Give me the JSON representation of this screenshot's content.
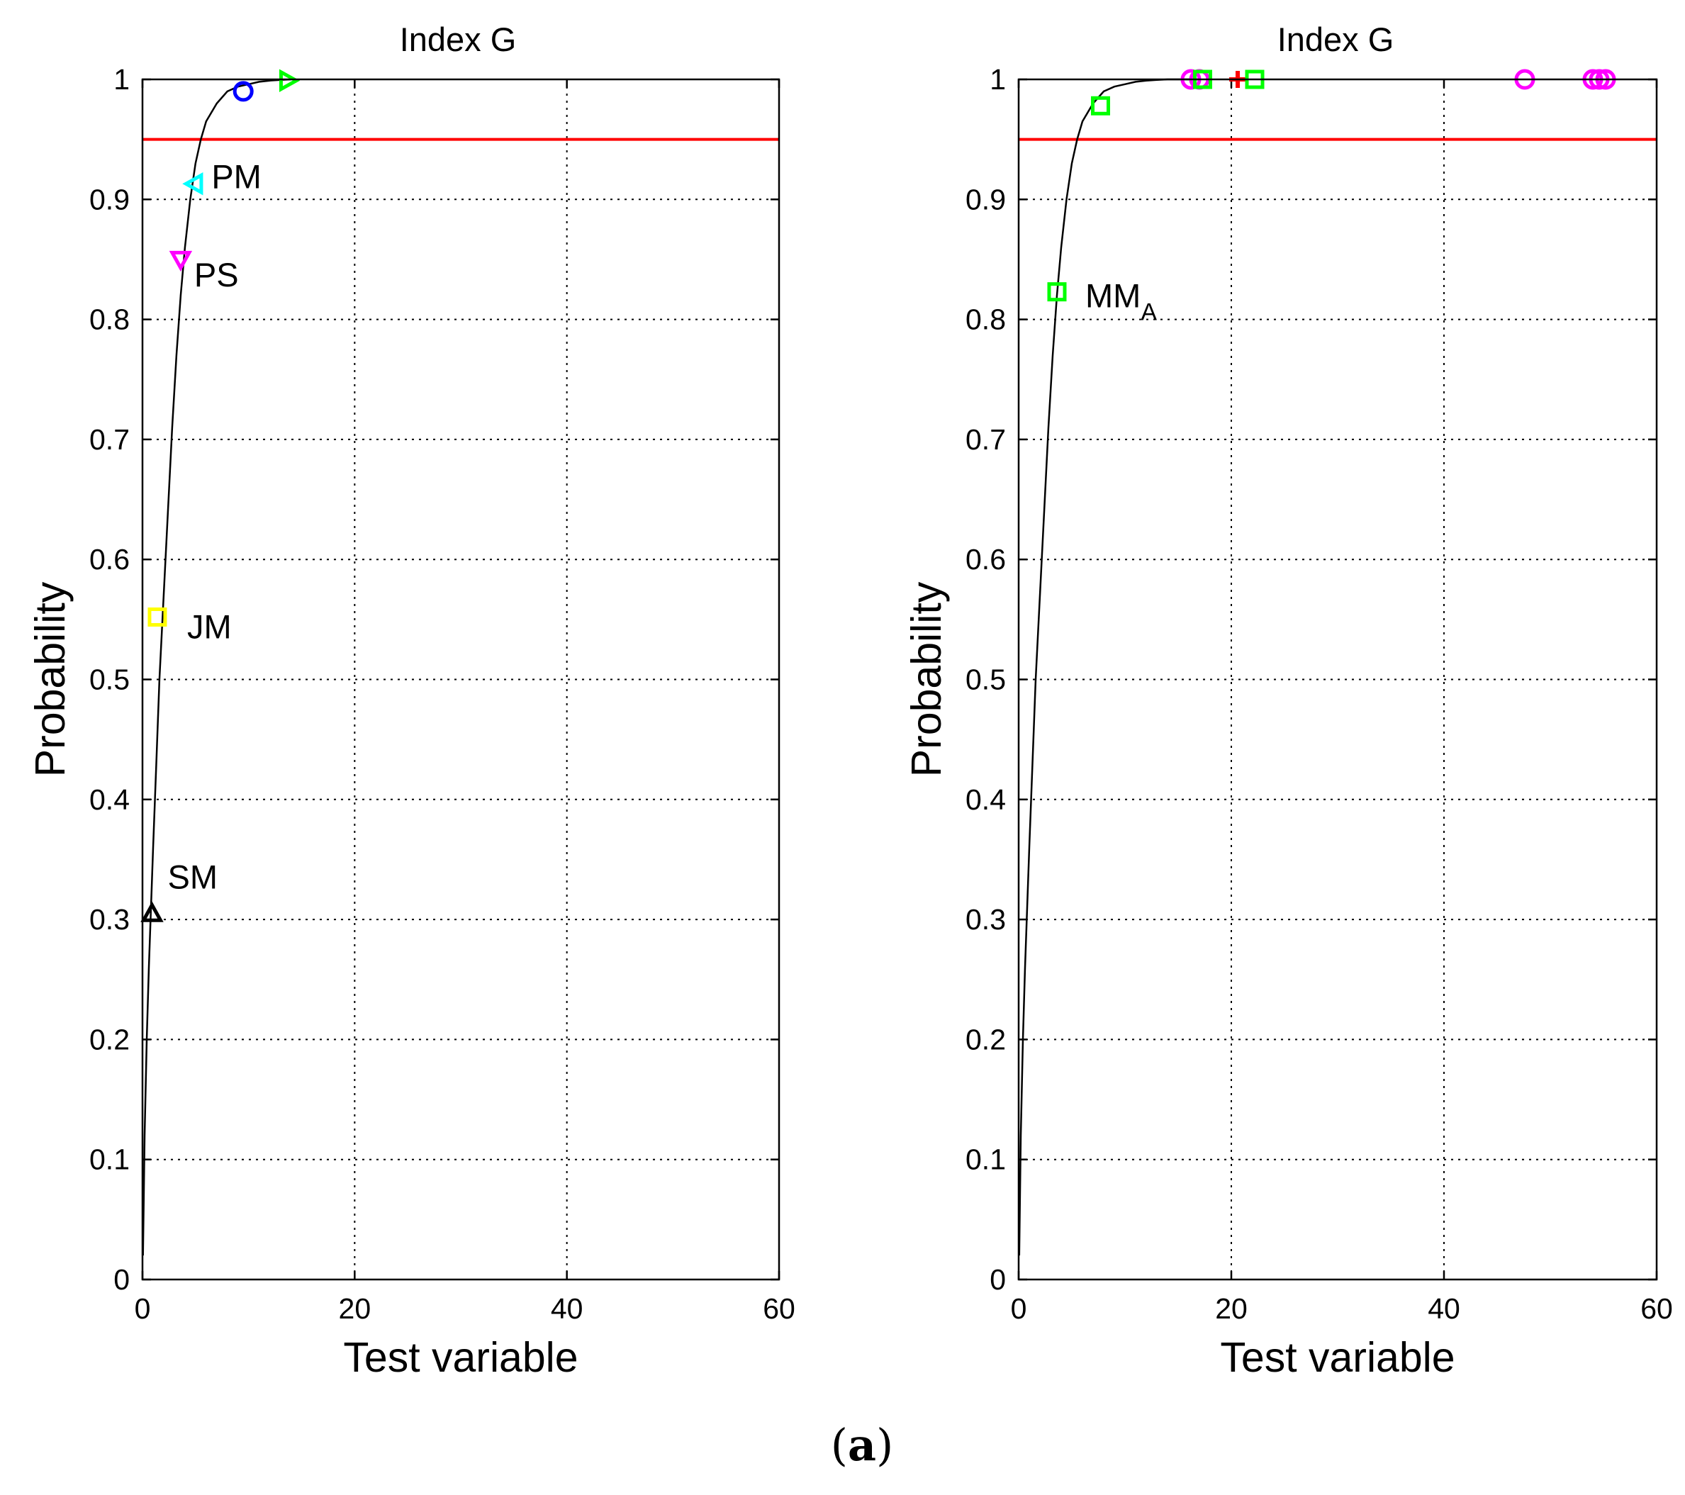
{
  "figure": {
    "caption_open": "(",
    "caption_letter": "a",
    "caption_close": ")"
  },
  "chart_data": [
    {
      "type": "line",
      "title": "Index G",
      "xlabel": "Test variable",
      "ylabel": "Probability",
      "xlim": [
        0,
        60
      ],
      "ylim": [
        0,
        1
      ],
      "xticks": [
        "0",
        "20",
        "40",
        "60"
      ],
      "yticks": [
        "0",
        "0.1",
        "0.2",
        "0.3",
        "0.4",
        "0.5",
        "0.6",
        "0.7",
        "0.8",
        "0.9",
        "1"
      ],
      "grid": true,
      "threshold": {
        "value": 0.95,
        "color": "#ff0000"
      },
      "curve": {
        "color": "#000000",
        "x": [
          0.05,
          0.2,
          0.4,
          0.6,
          0.8,
          1.0,
          1.3,
          1.6,
          2.0,
          2.4,
          2.8,
          3.2,
          3.6,
          4.0,
          4.5,
          5.0,
          5.5,
          6.0,
          7.0,
          8.0,
          9.0,
          10.0,
          11.0,
          12.0,
          13.0,
          14.0
        ],
        "y": [
          0.02,
          0.12,
          0.2,
          0.26,
          0.31,
          0.36,
          0.43,
          0.5,
          0.57,
          0.64,
          0.71,
          0.77,
          0.82,
          0.86,
          0.9,
          0.93,
          0.95,
          0.965,
          0.98,
          0.99,
          0.994,
          0.996,
          0.998,
          0.999,
          0.9995,
          1.0
        ]
      },
      "markers": [
        {
          "label": "SM",
          "x": 0.9,
          "y": 0.305,
          "shape": "triangle-up",
          "color": "#000000"
        },
        {
          "label": "JM",
          "x": 1.4,
          "y": 0.552,
          "shape": "square",
          "color": "#ffff00"
        },
        {
          "label": "PS",
          "x": 3.6,
          "y": 0.85,
          "shape": "triangle-down",
          "color": "#ff00ff"
        },
        {
          "label": "PM",
          "x": 4.9,
          "y": 0.913,
          "shape": "triangle-left",
          "color": "#00ffff"
        },
        {
          "label": "",
          "x": 9.5,
          "y": 0.99,
          "shape": "circle",
          "color": "#0000ff"
        },
        {
          "label": "",
          "x": 13.7,
          "y": 0.999,
          "shape": "triangle-right",
          "color": "#00ff00"
        }
      ]
    },
    {
      "type": "line",
      "title": "Index G",
      "xlabel": "Test variable",
      "ylabel": "Probability",
      "xlim": [
        0,
        60
      ],
      "ylim": [
        0,
        1
      ],
      "xticks": [
        "0",
        "20",
        "40",
        "60"
      ],
      "yticks": [
        "0",
        "0.1",
        "0.2",
        "0.3",
        "0.4",
        "0.5",
        "0.6",
        "0.7",
        "0.8",
        "0.9",
        "1"
      ],
      "grid": true,
      "threshold": {
        "value": 0.95,
        "color": "#ff0000"
      },
      "curve": {
        "color": "#000000",
        "x": [
          0.05,
          0.2,
          0.4,
          0.6,
          0.8,
          1.0,
          1.3,
          1.6,
          2.0,
          2.4,
          2.8,
          3.2,
          3.6,
          4.0,
          4.5,
          5.0,
          5.5,
          6.0,
          7.0,
          8.0,
          9.0,
          10.0,
          11.0,
          12.0,
          13.0,
          14.0,
          15.0,
          16.0,
          17.0
        ],
        "y": [
          0.02,
          0.12,
          0.2,
          0.26,
          0.31,
          0.36,
          0.43,
          0.5,
          0.57,
          0.64,
          0.71,
          0.77,
          0.82,
          0.86,
          0.9,
          0.93,
          0.95,
          0.965,
          0.98,
          0.99,
          0.994,
          0.996,
          0.998,
          0.999,
          0.9995,
          1.0,
          1.0,
          1.0,
          1.0
        ]
      },
      "markers": [
        {
          "label": "MM",
          "label_sub": "A",
          "x": 3.6,
          "y": 0.823,
          "shape": "square",
          "color": "#00ff00"
        },
        {
          "label": "",
          "x": 7.7,
          "y": 0.978,
          "shape": "square",
          "color": "#00ff00"
        },
        {
          "label": "",
          "x": 16.2,
          "y": 1.0,
          "shape": "circle",
          "color": "#ff00ff"
        },
        {
          "label": "",
          "x": 17.0,
          "y": 1.0,
          "shape": "circle",
          "color": "#ff00ff"
        },
        {
          "label": "",
          "x": 17.3,
          "y": 1.0,
          "shape": "square",
          "color": "#00ff00"
        },
        {
          "label": "",
          "x": 20.6,
          "y": 1.0,
          "shape": "plus",
          "color": "#ff0000"
        },
        {
          "label": "",
          "x": 22.2,
          "y": 1.0,
          "shape": "square",
          "color": "#00ff00"
        },
        {
          "label": "",
          "x": 47.6,
          "y": 1.0,
          "shape": "circle",
          "color": "#ff00ff"
        },
        {
          "label": "",
          "x": 54.0,
          "y": 1.0,
          "shape": "circle",
          "color": "#ff00ff"
        },
        {
          "label": "",
          "x": 54.6,
          "y": 1.0,
          "shape": "circle",
          "color": "#ff00ff"
        },
        {
          "label": "",
          "x": 55.2,
          "y": 1.0,
          "shape": "circle",
          "color": "#ff00ff"
        }
      ]
    }
  ]
}
